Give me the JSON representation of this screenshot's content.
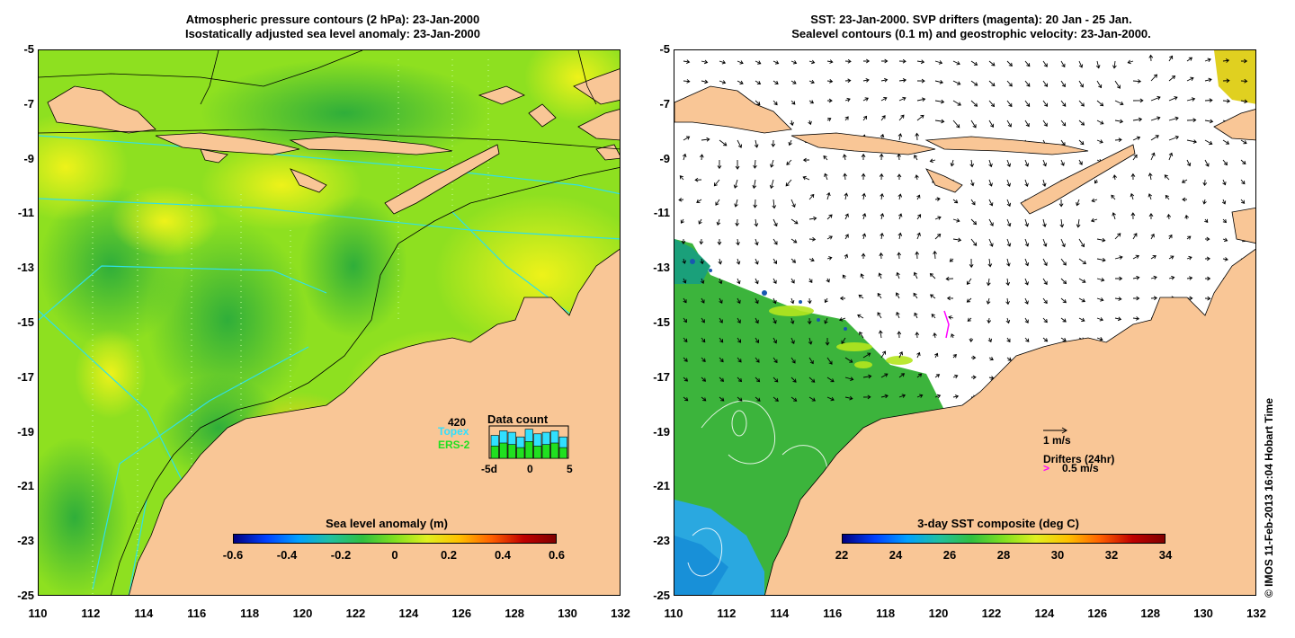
{
  "left_panel": {
    "title_line1": "Atmospheric pressure contours (2 hPa): 23-Jan-2000",
    "title_line2": "Isostatically adjusted sea level anomaly: 23-Jan-2000",
    "colorbar_title": "Sea level anomaly (m)",
    "colorbar_ticks": [
      "-0.6",
      "-0.4",
      "-0.2",
      "0",
      "0.2",
      "0.4",
      "0.6"
    ],
    "data_count": {
      "title": "Data count",
      "max_label": "420",
      "topex_label": "Topex",
      "ers2_label": "ERS-2",
      "axis_labels": [
        "-5d",
        "0",
        "5"
      ],
      "topex_colour": "#30e0ff",
      "ers2_colour": "#20e020"
    }
  },
  "right_panel": {
    "title_line1": "SST: 23-Jan-2000. SVP drifters (magenta): 20 Jan - 25 Jan.",
    "title_line2": "Sealevel contours (0.1 m) and geostrophic velocity: 23-Jan-2000.",
    "colorbar_title": "3-day SST composite (deg C)",
    "colorbar_ticks": [
      "22",
      "24",
      "26",
      "28",
      "30",
      "32",
      "34"
    ],
    "velocity_scale_label": "1 m/s",
    "drifters_label": "Drifters (24hr)",
    "drifter_scale_label": "0.5 m/s",
    "drifter_colour": "#ff00ff"
  },
  "axes": {
    "lat_ticks": [
      "-5",
      "-7",
      "-9",
      "-11",
      "-13",
      "-15",
      "-17",
      "-19",
      "-21",
      "-23",
      "-25"
    ],
    "lon_ticks": [
      "110",
      "112",
      "114",
      "116",
      "118",
      "120",
      "122",
      "124",
      "126",
      "128",
      "130",
      "132"
    ]
  },
  "credit": "© IMOS 11-Feb-2013 16:04 Hobart Time",
  "colors": {
    "land": "#f9c696",
    "ocean_base": "#7fdc1e",
    "sst_warm": "#3ca83c",
    "sst_cool": "#2aa8e0"
  }
}
